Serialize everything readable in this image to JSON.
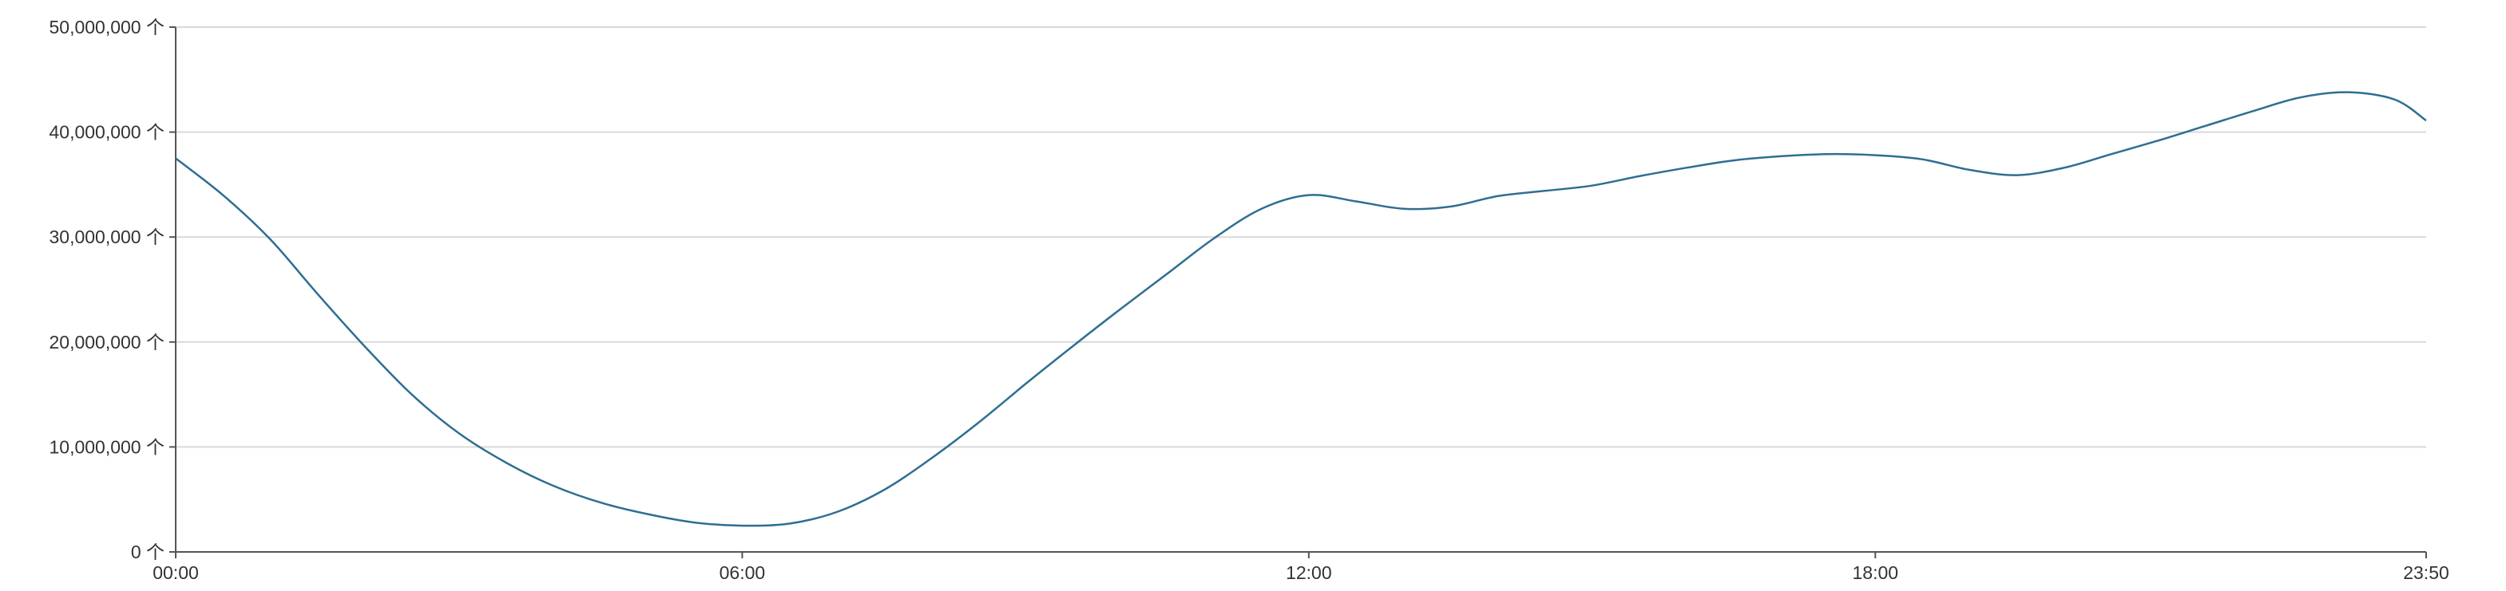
{
  "chart_data": {
    "type": "line",
    "title": "",
    "xlabel": "",
    "ylabel": "",
    "y_unit_suffix": "个",
    "y_ticks": [
      "0",
      "10,000,000",
      "20,000,000",
      "30,000,000",
      "40,000,000",
      "50,000,000"
    ],
    "y_tick_values": [
      0,
      10000000,
      20000000,
      30000000,
      40000000,
      50000000
    ],
    "x_ticks": [
      "00:00",
      "06:00",
      "12:00",
      "18:00",
      "23:50"
    ],
    "ylim": [
      0,
      50000000
    ],
    "xlim": [
      "00:00",
      "23:50"
    ],
    "grid": true,
    "line_color": "#2f6e92",
    "grid_color": "#d9d9d9",
    "axis_color": "#555555",
    "series": [
      {
        "x": [
          "00:00",
          "00:30",
          "01:00",
          "01:30",
          "02:00",
          "02:30",
          "03:00",
          "03:30",
          "04:00",
          "04:30",
          "05:00",
          "05:30",
          "06:00",
          "06:30",
          "07:00",
          "07:30",
          "08:00",
          "08:30",
          "09:00",
          "09:30",
          "10:00",
          "10:30",
          "11:00",
          "11:30",
          "12:00",
          "12:30",
          "13:00",
          "13:30",
          "14:00",
          "14:30",
          "15:00",
          "15:30",
          "16:00",
          "16:30",
          "17:00",
          "17:30",
          "18:00",
          "18:30",
          "19:00",
          "19:30",
          "20:00",
          "20:30",
          "21:00",
          "21:30",
          "22:00",
          "22:30",
          "23:00",
          "23:30",
          "23:50"
        ],
        "values": [
          37500000,
          34000000,
          29800000,
          24600000,
          19600000,
          15000000,
          11300000,
          8500000,
          6300000,
          4700000,
          3600000,
          2800000,
          2500000,
          2700000,
          3800000,
          5900000,
          8900000,
          12300000,
          16000000,
          19600000,
          23100000,
          26500000,
          29900000,
          32700000,
          34000000,
          33400000,
          32700000,
          32900000,
          33900000,
          34400000,
          34900000,
          35800000,
          36600000,
          37300000,
          37700000,
          37900000,
          37800000,
          37400000,
          36400000,
          35900000,
          36600000,
          37900000,
          39200000,
          40600000,
          42000000,
          43300000,
          43800000,
          43100000,
          41100000
        ]
      }
    ]
  }
}
